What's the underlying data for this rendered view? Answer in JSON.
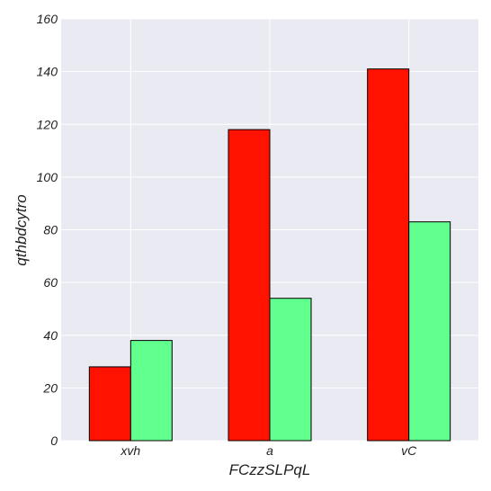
{
  "chart_data": {
    "type": "bar",
    "title": "",
    "xlabel": "FCzzSLPqL",
    "ylabel": "qthbdcytro",
    "categories": [
      "xvh",
      "a",
      "vC"
    ],
    "series": [
      {
        "values": [
          28,
          118,
          141
        ],
        "color": "#ff1200"
      },
      {
        "values": [
          38,
          54,
          83
        ],
        "color": "#61ff8e"
      }
    ],
    "ylim": [
      0,
      160
    ],
    "yticks": [
      "0",
      "20",
      "40",
      "60",
      "80",
      "100",
      "120",
      "140",
      "160"
    ],
    "grid": true,
    "legend": "none",
    "colors": {
      "plot_background": "#eaeaf2",
      "grid": "#ffffff",
      "bar_edge": "#000000"
    }
  }
}
